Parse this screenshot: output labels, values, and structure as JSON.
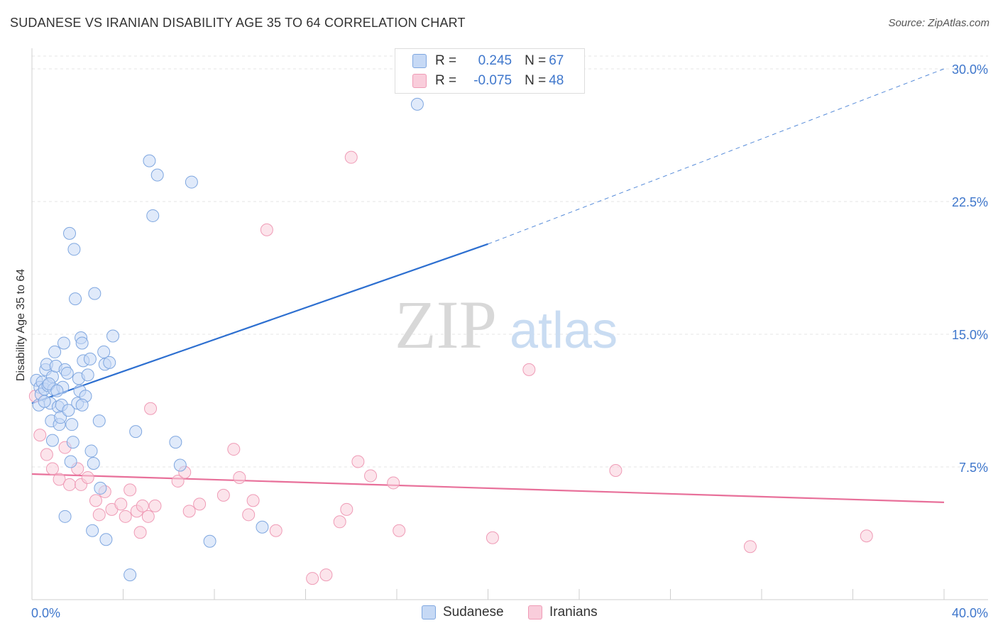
{
  "header": {
    "title": "SUDANESE VS IRANIAN DISABILITY AGE 35 TO 64 CORRELATION CHART",
    "source": "Source: ZipAtlas.com"
  },
  "watermark": {
    "zip": "ZIP",
    "atlas": "atlas"
  },
  "legend": {
    "sudanese": {
      "r_label": "R = ",
      "r_value": "0.245",
      "n_label": "N = ",
      "n_value": "67"
    },
    "iranians": {
      "r_label": "R = ",
      "r_value": "-0.075",
      "n_label": "N = ",
      "n_value": "48"
    }
  },
  "colors": {
    "blue_fill": "#c6d9f5",
    "blue_stroke": "#7fa7e0",
    "blue_line": "#2d6fd0",
    "pink_fill": "#f9cddb",
    "pink_stroke": "#ef9bb6",
    "pink_line": "#e8709a",
    "tick_text": "#3f77cc",
    "grid": "#e4e4e4"
  },
  "chart_data": {
    "type": "scatter",
    "title": "SUDANESE VS IRANIAN DISABILITY AGE 35 TO 64 CORRELATION CHART",
    "xlabel": "",
    "ylabel": "Disability Age 35 to 64",
    "xlim": [
      0,
      40
    ],
    "ylim": [
      0,
      30
    ],
    "x_tick_labels": [
      "0.0%",
      "40.0%"
    ],
    "y_ticks": [
      {
        "value": 7.5,
        "label": "7.5%"
      },
      {
        "value": 15,
        "label": "15.0%"
      },
      {
        "value": 22.5,
        "label": "22.5%"
      },
      {
        "value": 30,
        "label": "30.0%"
      }
    ],
    "series": [
      {
        "name": "Sudanese",
        "r": 0.245,
        "n": 67,
        "trend": {
          "x0": 0,
          "y0": 11.1,
          "x1": 20,
          "y1": 20.1,
          "dashed_to_x": 40,
          "dashed_to_y": 30.0
        },
        "points": [
          [
            0.2,
            12.4
          ],
          [
            0.3,
            11.0
          ],
          [
            0.35,
            12.0
          ],
          [
            0.4,
            11.6
          ],
          [
            0.45,
            12.3
          ],
          [
            0.55,
            11.9
          ],
          [
            0.6,
            13.0
          ],
          [
            0.65,
            13.3
          ],
          [
            0.7,
            12.1
          ],
          [
            0.8,
            11.1
          ],
          [
            0.85,
            10.1
          ],
          [
            0.9,
            12.6
          ],
          [
            0.9,
            9.0
          ],
          [
            0.95,
            11.9
          ],
          [
            1.0,
            14.0
          ],
          [
            1.05,
            13.2
          ],
          [
            1.15,
            10.9
          ],
          [
            1.2,
            9.9
          ],
          [
            1.25,
            10.3
          ],
          [
            1.3,
            11.0
          ],
          [
            1.35,
            12.0
          ],
          [
            1.4,
            14.5
          ],
          [
            1.45,
            13.0
          ],
          [
            1.55,
            12.8
          ],
          [
            1.6,
            10.7
          ],
          [
            1.65,
            20.7
          ],
          [
            1.7,
            7.8
          ],
          [
            1.75,
            9.9
          ],
          [
            1.8,
            8.9
          ],
          [
            1.85,
            19.8
          ],
          [
            1.9,
            17.0
          ],
          [
            2.0,
            11.1
          ],
          [
            2.05,
            12.5
          ],
          [
            2.1,
            11.8
          ],
          [
            2.15,
            14.8
          ],
          [
            2.2,
            14.5
          ],
          [
            2.25,
            13.5
          ],
          [
            2.35,
            11.5
          ],
          [
            2.45,
            12.7
          ],
          [
            2.55,
            13.6
          ],
          [
            2.6,
            8.4
          ],
          [
            2.65,
            3.9
          ],
          [
            2.7,
            7.7
          ],
          [
            2.75,
            17.3
          ],
          [
            2.95,
            10.1
          ],
          [
            3.0,
            6.3
          ],
          [
            3.15,
            14.0
          ],
          [
            3.2,
            13.3
          ],
          [
            3.25,
            3.4
          ],
          [
            3.4,
            13.4
          ],
          [
            3.55,
            14.9
          ],
          [
            4.3,
            1.4
          ],
          [
            4.55,
            9.5
          ],
          [
            5.15,
            24.8
          ],
          [
            5.3,
            21.7
          ],
          [
            5.5,
            24.0
          ],
          [
            6.3,
            8.9
          ],
          [
            6.5,
            7.6
          ],
          [
            7.0,
            23.6
          ],
          [
            7.8,
            3.3
          ],
          [
            10.1,
            4.1
          ],
          [
            16.9,
            28.0
          ],
          [
            0.55,
            11.2
          ],
          [
            0.75,
            12.2
          ],
          [
            1.1,
            11.8
          ],
          [
            1.45,
            4.7
          ],
          [
            2.2,
            11.0
          ]
        ]
      },
      {
        "name": "Iranians",
        "r": -0.075,
        "n": 48,
        "trend": {
          "x0": 0,
          "y0": 7.1,
          "x1": 40,
          "y1": 5.5
        },
        "points": [
          [
            0.15,
            11.5
          ],
          [
            0.35,
            9.3
          ],
          [
            0.65,
            8.2
          ],
          [
            0.9,
            7.4
          ],
          [
            1.2,
            6.8
          ],
          [
            1.45,
            8.6
          ],
          [
            1.65,
            6.5
          ],
          [
            2.0,
            7.4
          ],
          [
            2.15,
            6.5
          ],
          [
            2.45,
            6.9
          ],
          [
            2.8,
            5.6
          ],
          [
            2.95,
            4.8
          ],
          [
            3.2,
            6.1
          ],
          [
            3.5,
            5.1
          ],
          [
            3.9,
            5.4
          ],
          [
            4.1,
            4.7
          ],
          [
            4.3,
            6.2
          ],
          [
            4.6,
            5.0
          ],
          [
            4.75,
            3.8
          ],
          [
            4.85,
            5.3
          ],
          [
            5.1,
            4.7
          ],
          [
            5.2,
            10.8
          ],
          [
            5.4,
            5.3
          ],
          [
            6.4,
            6.7
          ],
          [
            6.7,
            7.2
          ],
          [
            6.9,
            5.0
          ],
          [
            7.35,
            5.4
          ],
          [
            8.4,
            5.9
          ],
          [
            8.85,
            8.5
          ],
          [
            9.1,
            6.9
          ],
          [
            9.5,
            4.8
          ],
          [
            9.7,
            5.6
          ],
          [
            10.3,
            20.9
          ],
          [
            10.7,
            3.9
          ],
          [
            12.3,
            1.2
          ],
          [
            12.9,
            1.4
          ],
          [
            13.5,
            4.4
          ],
          [
            13.8,
            5.1
          ],
          [
            14.0,
            25.0
          ],
          [
            14.3,
            7.8
          ],
          [
            14.85,
            7.0
          ],
          [
            15.85,
            6.6
          ],
          [
            16.1,
            3.9
          ],
          [
            20.2,
            3.5
          ],
          [
            21.8,
            13.0
          ],
          [
            25.6,
            7.3
          ],
          [
            31.5,
            3.0
          ],
          [
            36.6,
            3.6
          ]
        ]
      }
    ],
    "legend_position": "top-center",
    "bottom_legend": [
      "Sudanese",
      "Iranians"
    ],
    "grid": true
  }
}
